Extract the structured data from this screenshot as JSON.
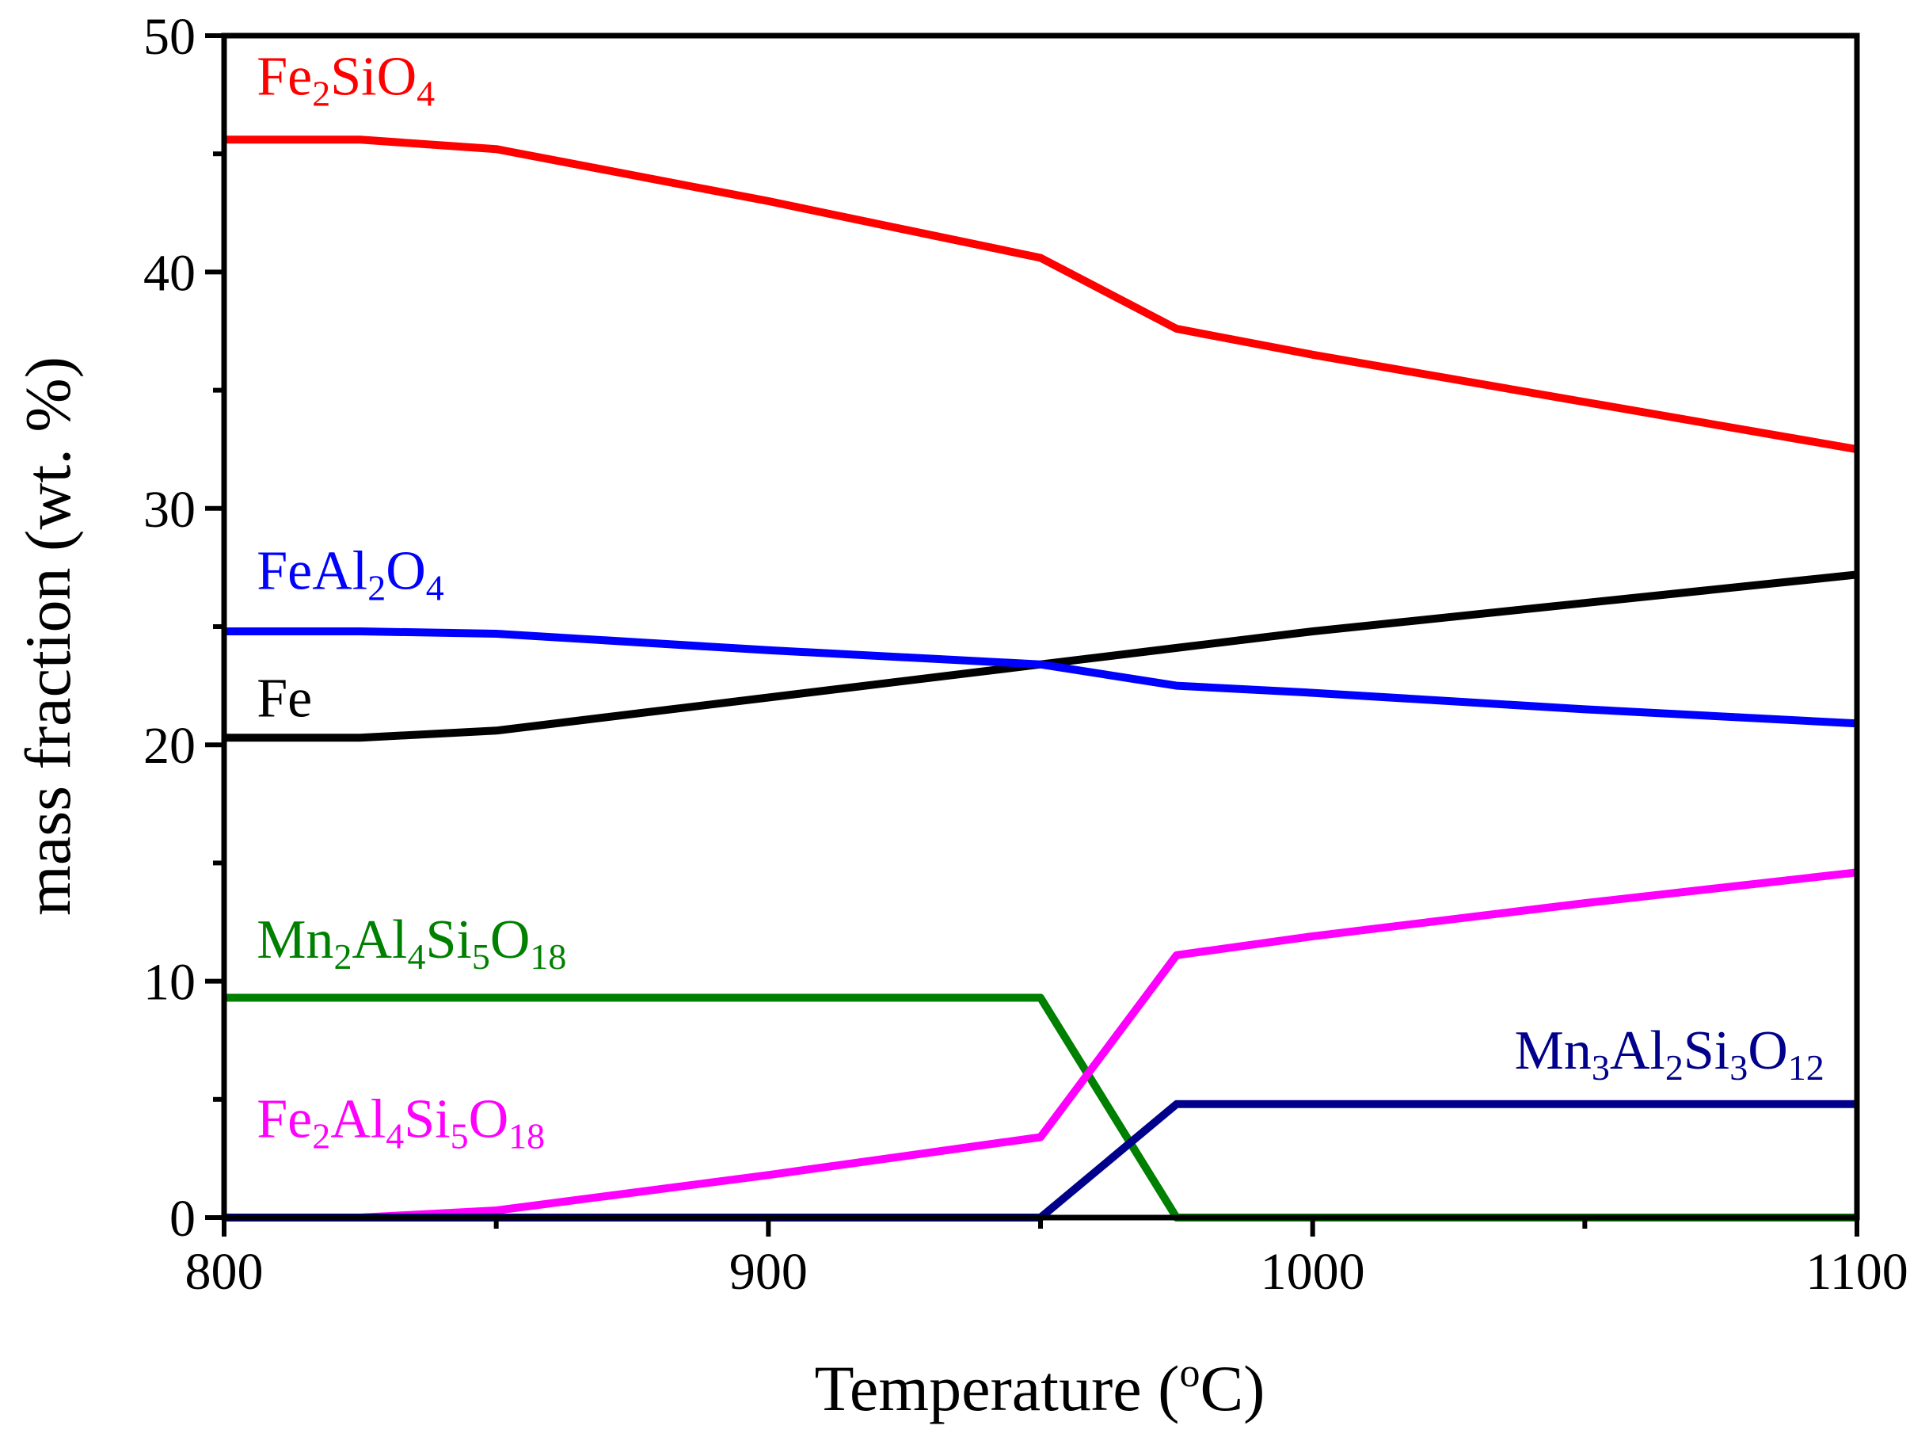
{
  "chart_data": {
    "type": "line",
    "xlabel": "Temperature (",
    "xlabel_sup": "o",
    "xlabel_end": "C)",
    "ylabel": "mass fraction (wt. %)",
    "xlim": [
      800,
      1100
    ],
    "ylim": [
      0,
      50
    ],
    "xticks": [
      800,
      900,
      1000,
      1100
    ],
    "yticks": [
      0,
      10,
      20,
      30,
      40,
      50
    ],
    "grid": false,
    "series": [
      {
        "name": "Fe2SiO4",
        "color": "#ff0000",
        "label_parts": [
          {
            "t": "Fe"
          },
          {
            "t": "2",
            "sub": true
          },
          {
            "t": "SiO"
          },
          {
            "t": "4",
            "sub": true
          }
        ],
        "label_anchor": [
          806,
          47.5
        ],
        "x": [
          800,
          825,
          850,
          900,
          950,
          975,
          1000,
          1050,
          1100
        ],
        "y": [
          45.6,
          45.6,
          45.2,
          43.0,
          40.6,
          37.6,
          36.5,
          34.5,
          32.5
        ]
      },
      {
        "name": "Fe",
        "color": "#000000",
        "label_parts": [
          {
            "t": "Fe"
          }
        ],
        "label_anchor": [
          806,
          21.2
        ],
        "x": [
          800,
          825,
          850,
          900,
          950,
          975,
          1000,
          1050,
          1100
        ],
        "y": [
          20.3,
          20.3,
          20.6,
          22.0,
          23.4,
          24.1,
          24.8,
          26.0,
          27.2
        ]
      },
      {
        "name": "FeAl2O4",
        "color": "#0000ff",
        "label_parts": [
          {
            "t": "FeAl"
          },
          {
            "t": "2",
            "sub": true
          },
          {
            "t": "O"
          },
          {
            "t": "4",
            "sub": true
          }
        ],
        "label_anchor": [
          806,
          26.6
        ],
        "x": [
          800,
          825,
          850,
          900,
          950,
          975,
          1000,
          1050,
          1100
        ],
        "y": [
          24.8,
          24.8,
          24.7,
          24.0,
          23.4,
          22.5,
          22.2,
          21.5,
          20.9
        ]
      },
      {
        "name": "Mn2Al4Si5O18",
        "color": "#008000",
        "label_parts": [
          {
            "t": "Mn"
          },
          {
            "t": "2",
            "sub": true
          },
          {
            "t": "Al"
          },
          {
            "t": "4",
            "sub": true
          },
          {
            "t": "Si"
          },
          {
            "t": "5",
            "sub": true
          },
          {
            "t": "O"
          },
          {
            "t": "18",
            "sub": true
          }
        ],
        "label_anchor": [
          806,
          11.0
        ],
        "x": [
          800,
          850,
          900,
          950,
          975,
          1000,
          1050,
          1100
        ],
        "y": [
          9.3,
          9.3,
          9.3,
          9.3,
          0.0,
          0.0,
          0.0,
          0.0
        ]
      },
      {
        "name": "Fe2Al4Si5O18",
        "color": "#ff00ff",
        "label_parts": [
          {
            "t": "Fe"
          },
          {
            "t": "2",
            "sub": true
          },
          {
            "t": "Al"
          },
          {
            "t": "4",
            "sub": true
          },
          {
            "t": "Si"
          },
          {
            "t": "5",
            "sub": true
          },
          {
            "t": "O"
          },
          {
            "t": "18",
            "sub": true
          }
        ],
        "label_anchor": [
          806,
          3.4
        ],
        "x": [
          800,
          825,
          850,
          900,
          950,
          975,
          1000,
          1050,
          1100
        ],
        "y": [
          0.0,
          0.0,
          0.3,
          1.8,
          3.4,
          11.1,
          11.9,
          13.3,
          14.6
        ]
      },
      {
        "name": "Mn3Al2Si3O12",
        "color": "#00008b",
        "label_parts": [
          {
            "t": "Mn"
          },
          {
            "t": "3",
            "sub": true
          },
          {
            "t": "Al"
          },
          {
            "t": "2",
            "sub": true
          },
          {
            "t": "Si"
          },
          {
            "t": "3",
            "sub": true
          },
          {
            "t": "O"
          },
          {
            "t": "12",
            "sub": true
          }
        ],
        "label_anchor": [
          1094,
          6.3
        ],
        "label_align": "end",
        "x": [
          800,
          950,
          975,
          1000,
          1050,
          1100
        ],
        "y": [
          0.0,
          0.0,
          4.8,
          4.8,
          4.8,
          4.8
        ]
      }
    ]
  }
}
